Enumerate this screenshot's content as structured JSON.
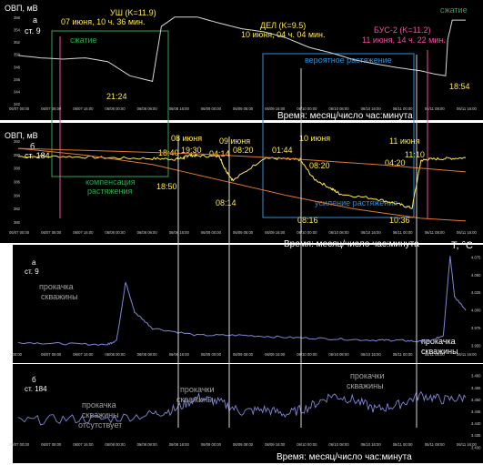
{
  "colors": {
    "yellow": "#ffe94a",
    "green": "#2fa84f",
    "blue": "#2f8fd8",
    "orange": "#e07830",
    "pink": "#f050a0",
    "white": "#ffffff",
    "gray_text": "#a0a0a0",
    "series_gray": "#d8d8d8",
    "series_blue": "#7e86d6",
    "panel_bg": "#000000"
  },
  "shared": {
    "time_axis_label": "Время: месяц/число час:минута",
    "ovp_label": "ОВП, мВ",
    "temp_label": "T, °C"
  },
  "chart_data": [
    {
      "id": "ovp_st9",
      "type": "line",
      "panel": "а",
      "station": "ст. 9",
      "ylabel": "ОВП, мВ",
      "xlabel": "Время: месяц/число час:минута",
      "y_ticks": [
        "356",
        "354",
        "352",
        "350",
        "348",
        "346",
        "344",
        "342"
      ],
      "x_ticks": [
        "06/07 00:00",
        "06/07 08:00",
        "06/07 16:00",
        "06/08 00:00",
        "06/08 08:00",
        "06/08 16:00",
        "06/09 00:00",
        "06/09 08:00",
        "06/09 16:00",
        "06/10 00:00",
        "06/10 08:00",
        "06/10 16:00",
        "06/11 00:00",
        "06/11 08:00",
        "06/11 16:00"
      ],
      "series": [
        {
          "x": [
            0.0,
            0.05,
            0.1,
            0.15,
            0.2,
            0.25,
            0.3,
            0.31,
            0.32,
            0.35,
            0.4,
            0.45,
            0.5,
            0.55,
            0.6,
            0.65,
            0.7,
            0.75,
            0.8,
            0.85,
            0.9,
            0.93,
            0.955,
            0.96,
            0.97,
            1.0
          ],
          "y": [
            349.9,
            349.5,
            349.3,
            349.5,
            348.9,
            346.6,
            345.7,
            350.2,
            354.6,
            356.1,
            356.1,
            355.1,
            354.2,
            353.7,
            352.7,
            351.2,
            350.3,
            349.2,
            348.5,
            347.9,
            347.4,
            346.9,
            346.6,
            352.5,
            355.6,
            355.6
          ]
        }
      ],
      "annotations": [
        {
          "label": "УШ (K=11.9)",
          "color": "yellow"
        },
        {
          "label": "07 июня, 10 ч. 36 мин.",
          "color": "yellow"
        },
        {
          "label": "ДЕЛ (K=9.5)",
          "color": "yellow"
        },
        {
          "label": "10 июня, 04 ч. 04 мин.",
          "color": "yellow"
        },
        {
          "label": "БУС-2 (K=11.2)",
          "color": "pink"
        },
        {
          "label": "11 июня, 14 ч. 22 мин.",
          "color": "pink"
        },
        {
          "label": "сжатие",
          "color": "green"
        },
        {
          "label": "сжатие",
          "color": "green"
        },
        {
          "label": "вероятное растяжение",
          "color": "blue"
        },
        {
          "label": "21:24",
          "color": "yellow"
        },
        {
          "label": "18:54",
          "color": "yellow"
        }
      ]
    },
    {
      "id": "ovp_st184",
      "type": "line",
      "panel": "б",
      "station": "ст. 184",
      "ylabel": "ОВП, мВ",
      "xlabel": "Время: месяц/число час:минута",
      "y_ticks": [
        "392",
        "390",
        "388",
        "386",
        "384",
        "382",
        "380"
      ],
      "x_ticks": [
        "06/07 00:00",
        "06/07 08:00",
        "06/07 16:00",
        "06/08 00:00",
        "06/08 08:00",
        "06/08 16:00",
        "06/09 00:00",
        "06/09 08:00",
        "06/09 16:00",
        "06/10 00:00",
        "06/10 08:00",
        "06/10 16:00",
        "06/11 00:00",
        "06/11 08:00",
        "06/11 16:00"
      ],
      "series": [
        {
          "name": "",
          "x": [
            0.0,
            0.1,
            0.2,
            0.3,
            0.35,
            0.37,
            0.38,
            0.4,
            0.45,
            0.46,
            0.48,
            0.55,
            0.6,
            0.63,
            0.66,
            0.7,
            0.72,
            0.8,
            0.85,
            0.88,
            0.9,
            0.92,
            0.96,
            1.0
          ],
          "y": [
            389.8,
            389.8,
            389.6,
            389.5,
            389.4,
            389.6,
            390.0,
            389.9,
            389.8,
            388.2,
            386.2,
            389.6,
            389.4,
            389.3,
            386.5,
            385.0,
            384.2,
            383.5,
            382.7,
            382.1,
            389.2,
            389.4,
            389.5,
            389.6
          ]
        },
        {
          "name": "",
          "x": [
            0.0,
            0.2,
            0.4,
            0.6,
            0.8,
            1.0
          ],
          "y": [
            391.0,
            390.6,
            390.2,
            389.5,
            388.6,
            387.5
          ]
        },
        {
          "name": "",
          "x": [
            0.0,
            0.15,
            0.3,
            0.45,
            0.6,
            0.75,
            0.9,
            1.0
          ],
          "y": [
            391.0,
            390.0,
            388.6,
            386.3,
            384.0,
            382.0,
            380.6,
            380.2
          ]
        }
      ],
      "annotations": [
        {
          "label": "08 июня",
          "color": "yellow"
        },
        {
          "label": "09 июня",
          "color": "yellow"
        },
        {
          "label": "10 июня",
          "color": "yellow"
        },
        {
          "label": "11 июня",
          "color": "yellow"
        },
        {
          "label": "18:40",
          "color": "yellow"
        },
        {
          "label": "19:30",
          "color": "yellow"
        },
        {
          "label": "04:14",
          "color": "yellow"
        },
        {
          "label": "08:20",
          "color": "yellow"
        },
        {
          "label": "01:44",
          "color": "yellow"
        },
        {
          "label": "08:20",
          "color": "yellow"
        },
        {
          "label": "04:20",
          "color": "yellow"
        },
        {
          "label": "11:10",
          "color": "yellow"
        },
        {
          "label": "18:50",
          "color": "yellow"
        },
        {
          "label": "08:14",
          "color": "yellow"
        },
        {
          "label": "08:16",
          "color": "yellow"
        },
        {
          "label": "10:36",
          "color": "yellow"
        },
        {
          "label": "компенсация",
          "color": "green"
        },
        {
          "label": "растяжения",
          "color": "green"
        },
        {
          "label": "усиление растяжения",
          "color": "blue"
        }
      ]
    },
    {
      "id": "temp_st9",
      "type": "line",
      "panel": "а",
      "station": "ст. 9",
      "ylabel": "T, °C",
      "y_ticks": [
        "4.075",
        "4.050",
        "4.025",
        "4.000",
        "3.975",
        "3.950"
      ],
      "x_ticks": [
        "7 00:00",
        "06/07 08:00",
        "06/07 16:00",
        "06/08 00:00",
        "06/08 08:00",
        "06/08 16:00",
        "06/09 00:00",
        "06/09 08:00",
        "06/09 16:00",
        "06/10 00:00",
        "06/10 08:00",
        "06/10 16:00",
        "06/11 00:00",
        "06/11 08:00",
        "06/11 16:00"
      ],
      "series": [
        {
          "x": [
            0.0,
            0.1,
            0.2,
            0.22,
            0.24,
            0.26,
            0.3,
            0.4,
            0.5,
            0.6,
            0.7,
            0.8,
            0.85,
            0.9,
            0.92,
            0.95,
            0.965,
            0.975,
            1.0
          ],
          "y": [
            3.955,
            3.953,
            3.952,
            3.958,
            4.04,
            3.998,
            3.975,
            3.965,
            3.965,
            3.962,
            3.96,
            3.958,
            3.958,
            3.956,
            3.956,
            3.965,
            4.078,
            4.02,
            4.0
          ]
        }
      ],
      "annotations": [
        {
          "label": "прокачка",
          "color": "gray_text"
        },
        {
          "label": "скважины",
          "color": "gray_text"
        },
        {
          "label": "прокачка",
          "color": "white"
        },
        {
          "label": "скважины",
          "color": "white"
        }
      ]
    },
    {
      "id": "temp_st184",
      "type": "line",
      "panel": "б",
      "station": "ст. 184",
      "ylabel": "",
      "xlabel": "Время: месяц/число час:минута",
      "y_ticks": [
        "3.460",
        "3.455",
        "3.450",
        "3.445",
        "3.440",
        "3.435",
        "3.430"
      ],
      "x_ticks": [
        "06/07 00:00",
        "06/07 08:00",
        "06/07 16:00",
        "06/08 00:00",
        "06/08 08:00",
        "06/08 16:00",
        "06/09 00:00",
        "06/09 08:00",
        "06/09 16:00",
        "06/10 00:00",
        "06/10 08:00",
        "06/10 16:00",
        "06/11 00:00",
        "06/11 08:00",
        "06/11 16:00"
      ],
      "series": [
        {
          "x": [
            0.0,
            0.1,
            0.2,
            0.3,
            0.35,
            0.4,
            0.45,
            0.5,
            0.55,
            0.6,
            0.65,
            0.7,
            0.75,
            0.8,
            0.85,
            0.9,
            0.95,
            1.0
          ],
          "y": [
            3.441,
            3.442,
            3.442,
            3.444,
            3.446,
            3.451,
            3.449,
            3.445,
            3.446,
            3.444,
            3.447,
            3.452,
            3.45,
            3.446,
            3.448,
            3.452,
            3.45,
            3.451
          ]
        }
      ],
      "annotations": [
        {
          "label": "прокачка",
          "color": "gray_text"
        },
        {
          "label": "скважины",
          "color": "gray_text"
        },
        {
          "label": "отсутствует",
          "color": "gray_text"
        },
        {
          "label": "прокачки",
          "color": "gray_text"
        },
        {
          "label": "скважины",
          "color": "gray_text"
        },
        {
          "label": "прокачки",
          "color": "gray_text"
        },
        {
          "label": "скважины",
          "color": "gray_text"
        }
      ]
    }
  ]
}
